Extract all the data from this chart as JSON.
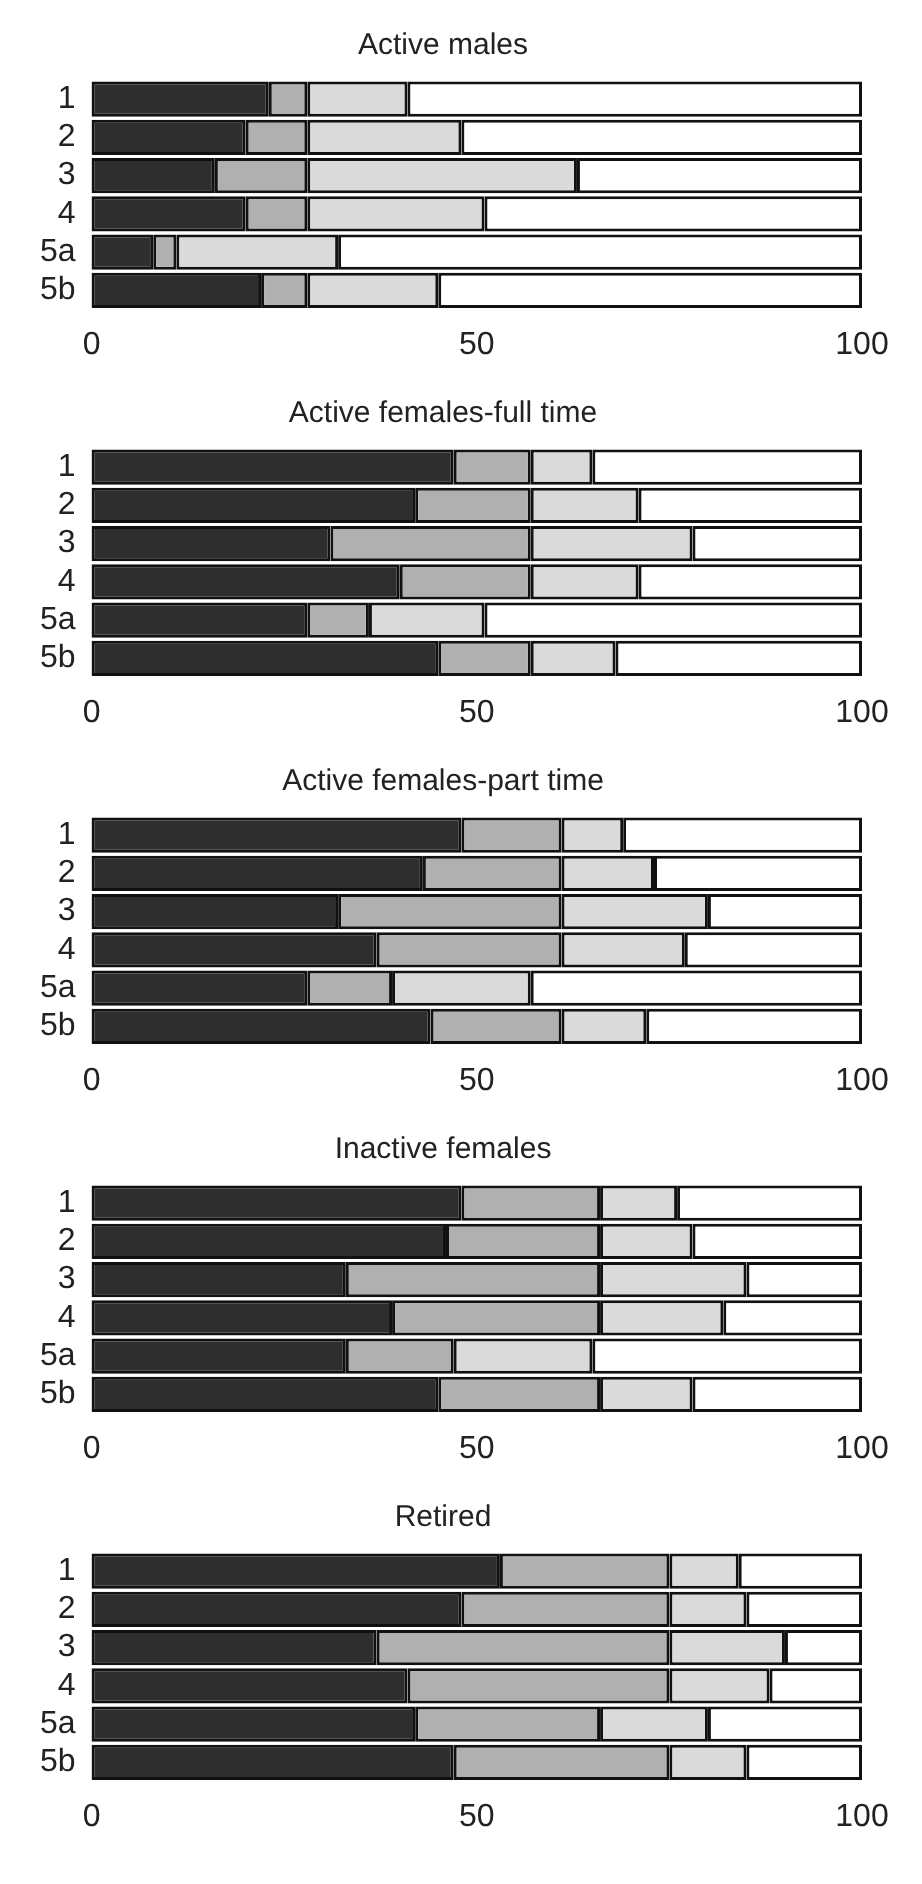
{
  "chart_data": [
    {
      "type": "bar",
      "title": "Active males",
      "orientation": "horizontal",
      "stacked": true,
      "categories": [
        "1",
        "2",
        "3",
        "4",
        "5a",
        "5b"
      ],
      "xlim": [
        0,
        100
      ],
      "xticks": [
        0,
        50,
        100
      ],
      "series": [
        {
          "color": "#2e2e2e",
          "values": [
            23,
            20,
            16,
            20,
            8,
            22
          ]
        },
        {
          "color": "#b0b0b0",
          "values": [
            5,
            8,
            12,
            8,
            3,
            6
          ]
        },
        {
          "color": "#dadada",
          "values": [
            13,
            20,
            35,
            23,
            21,
            17
          ]
        },
        {
          "color": "#ffffff",
          "values": [
            59,
            52,
            37,
            49,
            68,
            55
          ]
        }
      ]
    },
    {
      "type": "bar",
      "title": "Active females-full time",
      "orientation": "horizontal",
      "stacked": true,
      "categories": [
        "1",
        "2",
        "3",
        "4",
        "5a",
        "5b"
      ],
      "xlim": [
        0,
        100
      ],
      "xticks": [
        0,
        50,
        100
      ],
      "series": [
        {
          "color": "#2e2e2e",
          "values": [
            47,
            42,
            31,
            40,
            28,
            45
          ]
        },
        {
          "color": "#b0b0b0",
          "values": [
            10,
            15,
            26,
            17,
            8,
            12
          ]
        },
        {
          "color": "#dadada",
          "values": [
            8,
            14,
            21,
            14,
            15,
            11
          ]
        },
        {
          "color": "#ffffff",
          "values": [
            35,
            29,
            22,
            29,
            49,
            32
          ]
        }
      ]
    },
    {
      "type": "bar",
      "title": "Active females-part time",
      "orientation": "horizontal",
      "stacked": true,
      "categories": [
        "1",
        "2",
        "3",
        "4",
        "5a",
        "5b"
      ],
      "xlim": [
        0,
        100
      ],
      "xticks": [
        0,
        50,
        100
      ],
      "series": [
        {
          "color": "#2e2e2e",
          "values": [
            48,
            43,
            32,
            37,
            28,
            44
          ]
        },
        {
          "color": "#b0b0b0",
          "values": [
            13,
            18,
            29,
            24,
            11,
            17
          ]
        },
        {
          "color": "#dadada",
          "values": [
            8,
            12,
            19,
            16,
            18,
            11
          ]
        },
        {
          "color": "#ffffff",
          "values": [
            31,
            27,
            20,
            23,
            43,
            28
          ]
        }
      ]
    },
    {
      "type": "bar",
      "title": "Inactive females",
      "orientation": "horizontal",
      "stacked": true,
      "categories": [
        "1",
        "2",
        "3",
        "4",
        "5a",
        "5b"
      ],
      "xlim": [
        0,
        100
      ],
      "xticks": [
        0,
        50,
        100
      ],
      "series": [
        {
          "color": "#2e2e2e",
          "values": [
            48,
            46,
            33,
            39,
            33,
            45
          ]
        },
        {
          "color": "#b0b0b0",
          "values": [
            18,
            20,
            33,
            27,
            14,
            21
          ]
        },
        {
          "color": "#dadada",
          "values": [
            10,
            12,
            19,
            16,
            18,
            12
          ]
        },
        {
          "color": "#ffffff",
          "values": [
            24,
            22,
            15,
            18,
            35,
            22
          ]
        }
      ]
    },
    {
      "type": "bar",
      "title": "Retired",
      "orientation": "horizontal",
      "stacked": true,
      "categories": [
        "1",
        "2",
        "3",
        "4",
        "5a",
        "5b"
      ],
      "xlim": [
        0,
        100
      ],
      "xticks": [
        0,
        50,
        100
      ],
      "series": [
        {
          "color": "#2e2e2e",
          "values": [
            53,
            48,
            37,
            41,
            42,
            47
          ]
        },
        {
          "color": "#b0b0b0",
          "values": [
            22,
            27,
            38,
            34,
            24,
            28
          ]
        },
        {
          "color": "#dadada",
          "values": [
            9,
            10,
            15,
            13,
            14,
            10
          ]
        },
        {
          "color": "#ffffff",
          "values": [
            16,
            15,
            10,
            12,
            20,
            15
          ]
        }
      ]
    }
  ]
}
